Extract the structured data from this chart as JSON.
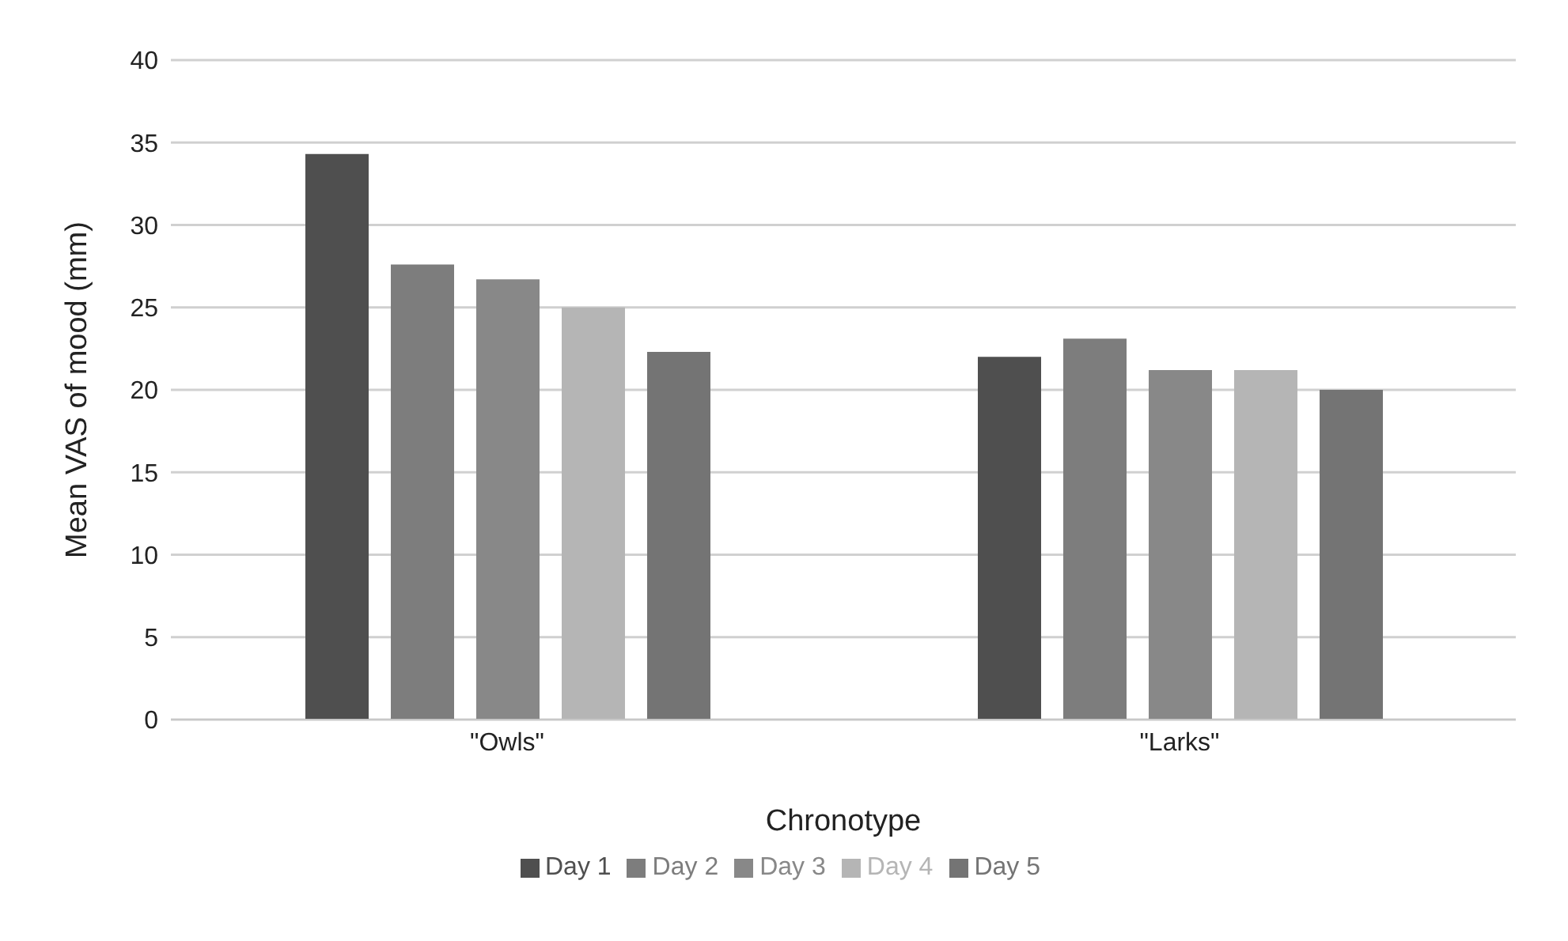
{
  "chart_data": {
    "type": "bar",
    "xlabel": "Chronotype",
    "ylabel": "Mean VAS of mood (mm)",
    "categories": [
      "\"Owls\"",
      "\"Larks\""
    ],
    "series": [
      {
        "name": "Day 1",
        "color": "#4f4f4f",
        "values": [
          34.3,
          22.0
        ]
      },
      {
        "name": "Day 2",
        "color": "#7d7d7d",
        "values": [
          27.6,
          23.1
        ]
      },
      {
        "name": "Day 3",
        "color": "#888888",
        "values": [
          26.7,
          21.2
        ]
      },
      {
        "name": "Day 4",
        "color": "#b5b5b5",
        "values": [
          25.0,
          21.2
        ]
      },
      {
        "name": "Day 5",
        "color": "#747474",
        "values": [
          22.3,
          20.0
        ]
      }
    ],
    "ylim": [
      0,
      40
    ],
    "yticks": [
      0,
      5,
      10,
      15,
      20,
      25,
      30,
      35,
      40
    ],
    "grid": "y",
    "legend": "bottom"
  }
}
